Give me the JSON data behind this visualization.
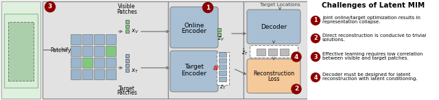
{
  "title": "Challenges of Latent MIM",
  "dark_red": "#8B0000",
  "blue_patch": "#9ab5cc",
  "green_patch": "#7fc97f",
  "encoder_color": "#a8bfd4",
  "decoder_color": "#a8bfd4",
  "recon_color": "#f5c99a",
  "section_bg": "#e2e2e2",
  "left_bg": "#dff0df",
  "img_outer": "#d0e8d0",
  "img_inner": "#a0c8a0",
  "challenges": [
    [
      "Joint online/target optimization results in",
      "representation collapse."
    ],
    [
      "Direct reconstruction is conducive to trivial",
      "solutions."
    ],
    [
      "Effective learning requires low correlation",
      "between visible and target patches."
    ],
    [
      "Decoder must be designed for latent",
      "reconstruction with latent conditioning."
    ]
  ],
  "challenge_numbers": [
    "1",
    "2",
    "3",
    "4"
  ]
}
